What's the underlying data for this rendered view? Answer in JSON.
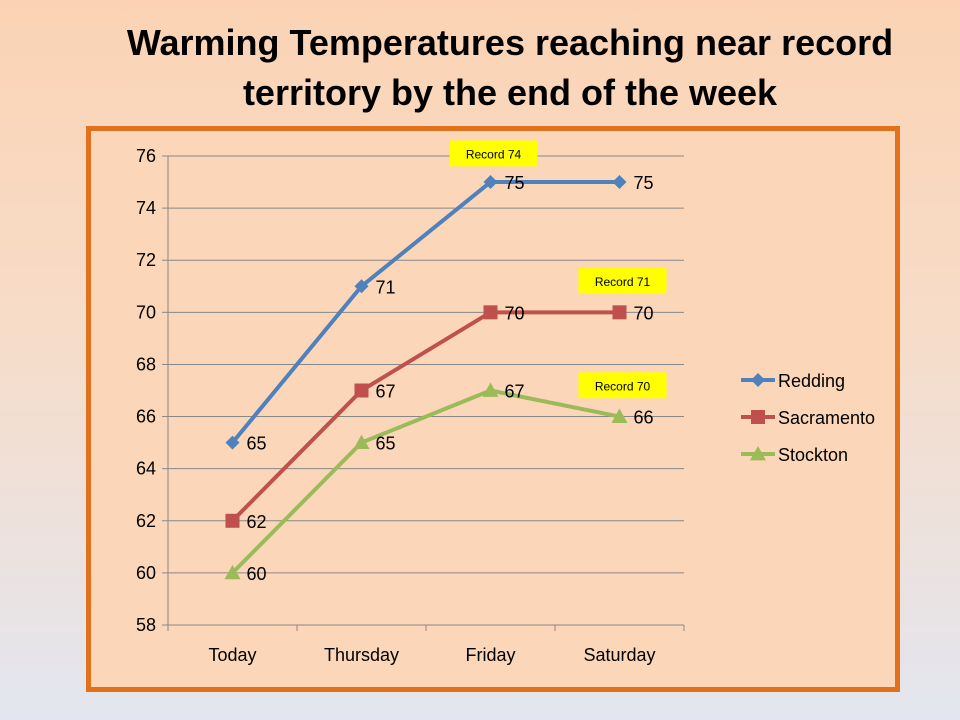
{
  "slide": {
    "title": "Warming Temperatures reaching near record territory by the end of the week"
  },
  "chart_data": {
    "type": "line",
    "title": "",
    "xlabel": "",
    "ylabel": "",
    "categories": [
      "Today",
      "Thursday",
      "Friday",
      "Saturday"
    ],
    "ylim": [
      58,
      76
    ],
    "yticks": [
      58,
      60,
      62,
      64,
      66,
      68,
      70,
      72,
      74,
      76
    ],
    "grid": true,
    "legend": "right",
    "series": [
      {
        "name": "Redding",
        "values": [
          65,
          71,
          75,
          75
        ],
        "color": "#4f81bd",
        "marker": "diamond"
      },
      {
        "name": "Sacramento",
        "values": [
          62,
          67,
          70,
          70
        ],
        "color": "#c0504d",
        "marker": "square"
      },
      {
        "name": "Stockton",
        "values": [
          60,
          65,
          67,
          66
        ],
        "color": "#9bbb59",
        "marker": "triangle"
      }
    ],
    "annotations": [
      {
        "text": "Record 74",
        "category": "Friday",
        "value": 76.1
      },
      {
        "text": "Record 71",
        "category": "Saturday",
        "value": 71.2
      },
      {
        "text": "Record 70",
        "category": "Saturday",
        "value": 67.2
      }
    ],
    "annotation_color": "#ffff00"
  }
}
